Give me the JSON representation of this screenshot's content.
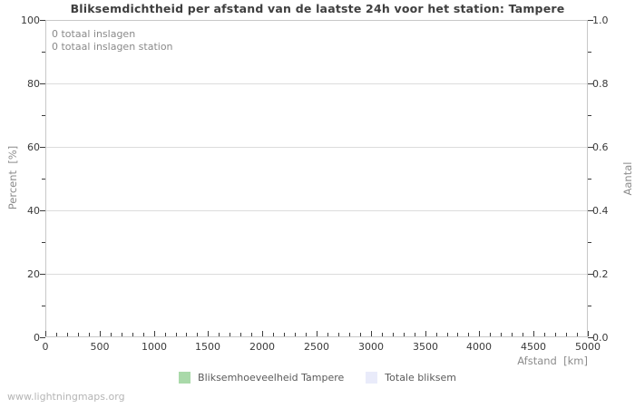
{
  "page": {
    "footer": "www.lightningmaps.org"
  },
  "chart_data": {
    "type": "bar",
    "title": "Bliksemdichtheid per afstand van de laatste 24h voor het station: Tampere",
    "xlabel": "Afstand  [km]",
    "ylabel_left": "Percent  [%]",
    "ylabel_right": "Aantal",
    "xlim": [
      0,
      5000
    ],
    "ylim_left": [
      0,
      100
    ],
    "ylim_right": [
      0.0,
      1.0
    ],
    "x_ticks": [
      0,
      500,
      1000,
      1500,
      2000,
      2500,
      3000,
      3500,
      4000,
      4500,
      5000
    ],
    "x_minor_tick_step": 100,
    "y_ticks_left": [
      0,
      20,
      40,
      60,
      80,
      100
    ],
    "y_minor_tick_step_left": 10,
    "y_ticks_right": [
      "0.0",
      "0.2",
      "0.4",
      "0.6",
      "0.8",
      "1.0"
    ],
    "y_minor_tick_step_right": 0.1,
    "grid": "horizontal-major-only",
    "legend_position": "bottom-center",
    "annotations": [
      "0 totaal inslagen",
      "0 totaal inslagen station"
    ],
    "series": [
      {
        "name": "Bliksemhoeveelheid Tampere",
        "color": "#a9d9a9",
        "values": []
      },
      {
        "name": "Totale bliksem",
        "color": "#e9ebfa",
        "values": []
      }
    ]
  }
}
